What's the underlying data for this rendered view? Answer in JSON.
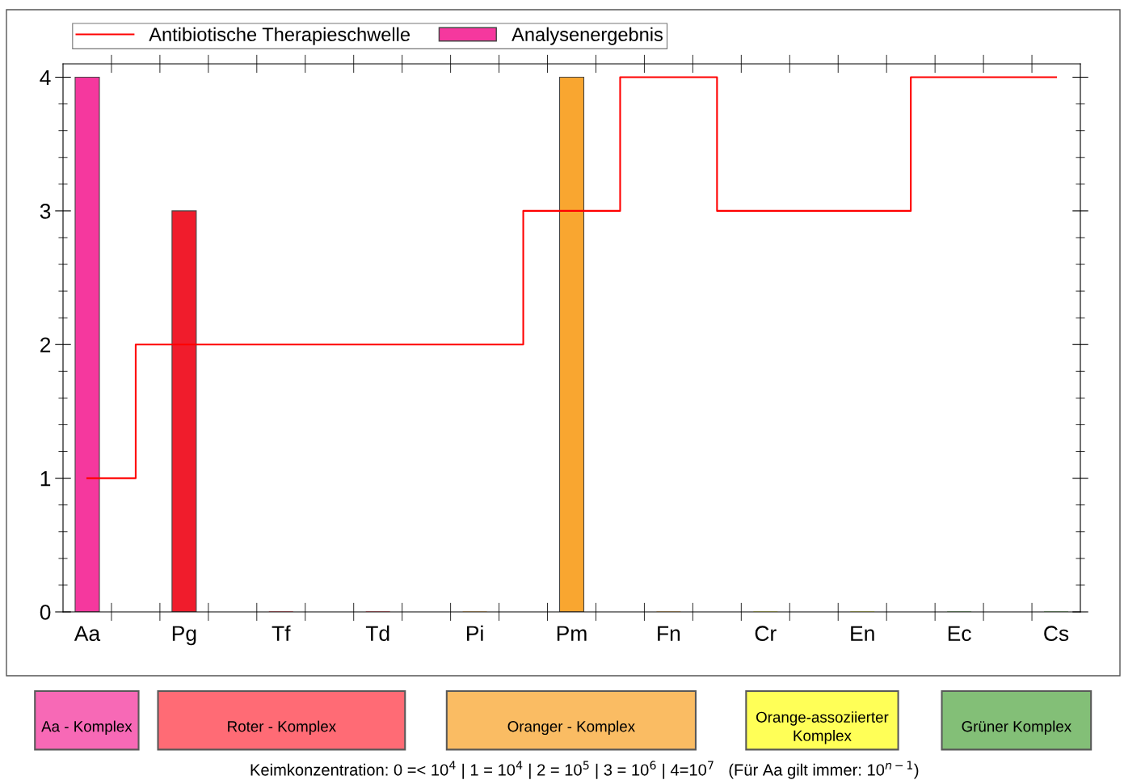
{
  "chart_data": {
    "type": "bar",
    "categories": [
      "Aa",
      "Pg",
      "Tf",
      "Td",
      "Pi",
      "Pm",
      "Fn",
      "Cr",
      "En",
      "Ec",
      "Cs"
    ],
    "series": [
      {
        "name": "Analysenergebnis",
        "colors": [
          "#f5389e",
          "#f01c2c",
          "#f01c2c",
          "#f01c2c",
          "#f9a630",
          "#f9a630",
          "#f9a630",
          "#f0f020",
          "#f0f020",
          "#5aaa4a",
          "#5aaa4a"
        ],
        "values": [
          4,
          3,
          0,
          0,
          0,
          4,
          0,
          0,
          0,
          0,
          0
        ]
      },
      {
        "name": "Antibiotische Therapieschwelle",
        "type": "step",
        "color": "#ff0000",
        "values": [
          1,
          2,
          2,
          2,
          2,
          3,
          4,
          3,
          3,
          4,
          4
        ]
      }
    ],
    "ylim": [
      0,
      4.1
    ],
    "yticks": [
      0,
      1,
      2,
      3,
      4
    ],
    "grid": false,
    "legend": "top",
    "annotations": [
      "Aa - Komplex",
      "Roter - Komplex",
      "Oranger - Komplex",
      "Orange-assoziierter Komplex",
      "Grüner Komplex",
      "Keimkonzentration: 0 =< 10$^{4}$ | 1 = 10$^{4}$ | 2 = 10$^{5}$ | 3 = 10$^{6}$ | 4=10$^{7}$   (Für Aa gilt immer: 10$^{n−1}$)"
    ]
  }
}
